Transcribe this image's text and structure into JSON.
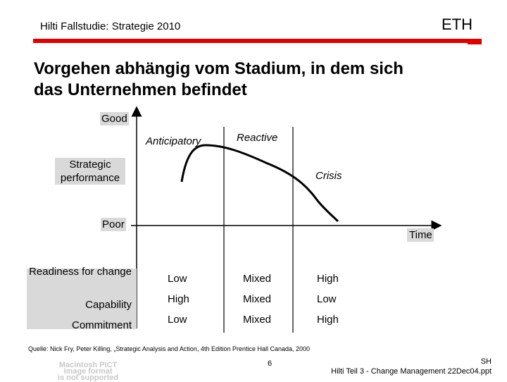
{
  "header": {
    "title": "Hilti Fallstudie: Strategie 2010",
    "logo_text": "ETH",
    "accent_color": "#e00000"
  },
  "slide": {
    "title_line1": "Vorgehen abhängig vom Stadium, in dem sich",
    "title_line2": "das Unternehmen befindet"
  },
  "diagram": {
    "y_top_label": "Good",
    "y_axis_label_line1": "Strategic",
    "y_axis_label_line2": "performance",
    "y_bottom_label": "Poor",
    "x_axis_label": "Time",
    "stage_anticipatory": "Anticipatory",
    "stage_reactive": "Reactive",
    "stage_crisis": "Crisis"
  },
  "table": {
    "rows": [
      {
        "label": "Readiness for change",
        "values": [
          "Low",
          "Mixed",
          "High"
        ]
      },
      {
        "label": "Capability",
        "values": [
          "High",
          "Mixed",
          "Low"
        ]
      },
      {
        "label": "Commitment",
        "values": [
          "Low",
          "Mixed",
          "High"
        ]
      }
    ]
  },
  "footer": {
    "source": "Quelle: Nick Fry, Peter Killing, „Strategic Analysis and Action, 4th Edition Prentice Hall Canada, 2000",
    "page_number": "6",
    "initials": "SH",
    "file": "Hilti Teil 3 - Change Management 22Dec04.ppt",
    "pict_placeholder_line1": "Macintosh PICT",
    "pict_placeholder_line2": "image format",
    "pict_placeholder_line3": "is not supported"
  }
}
